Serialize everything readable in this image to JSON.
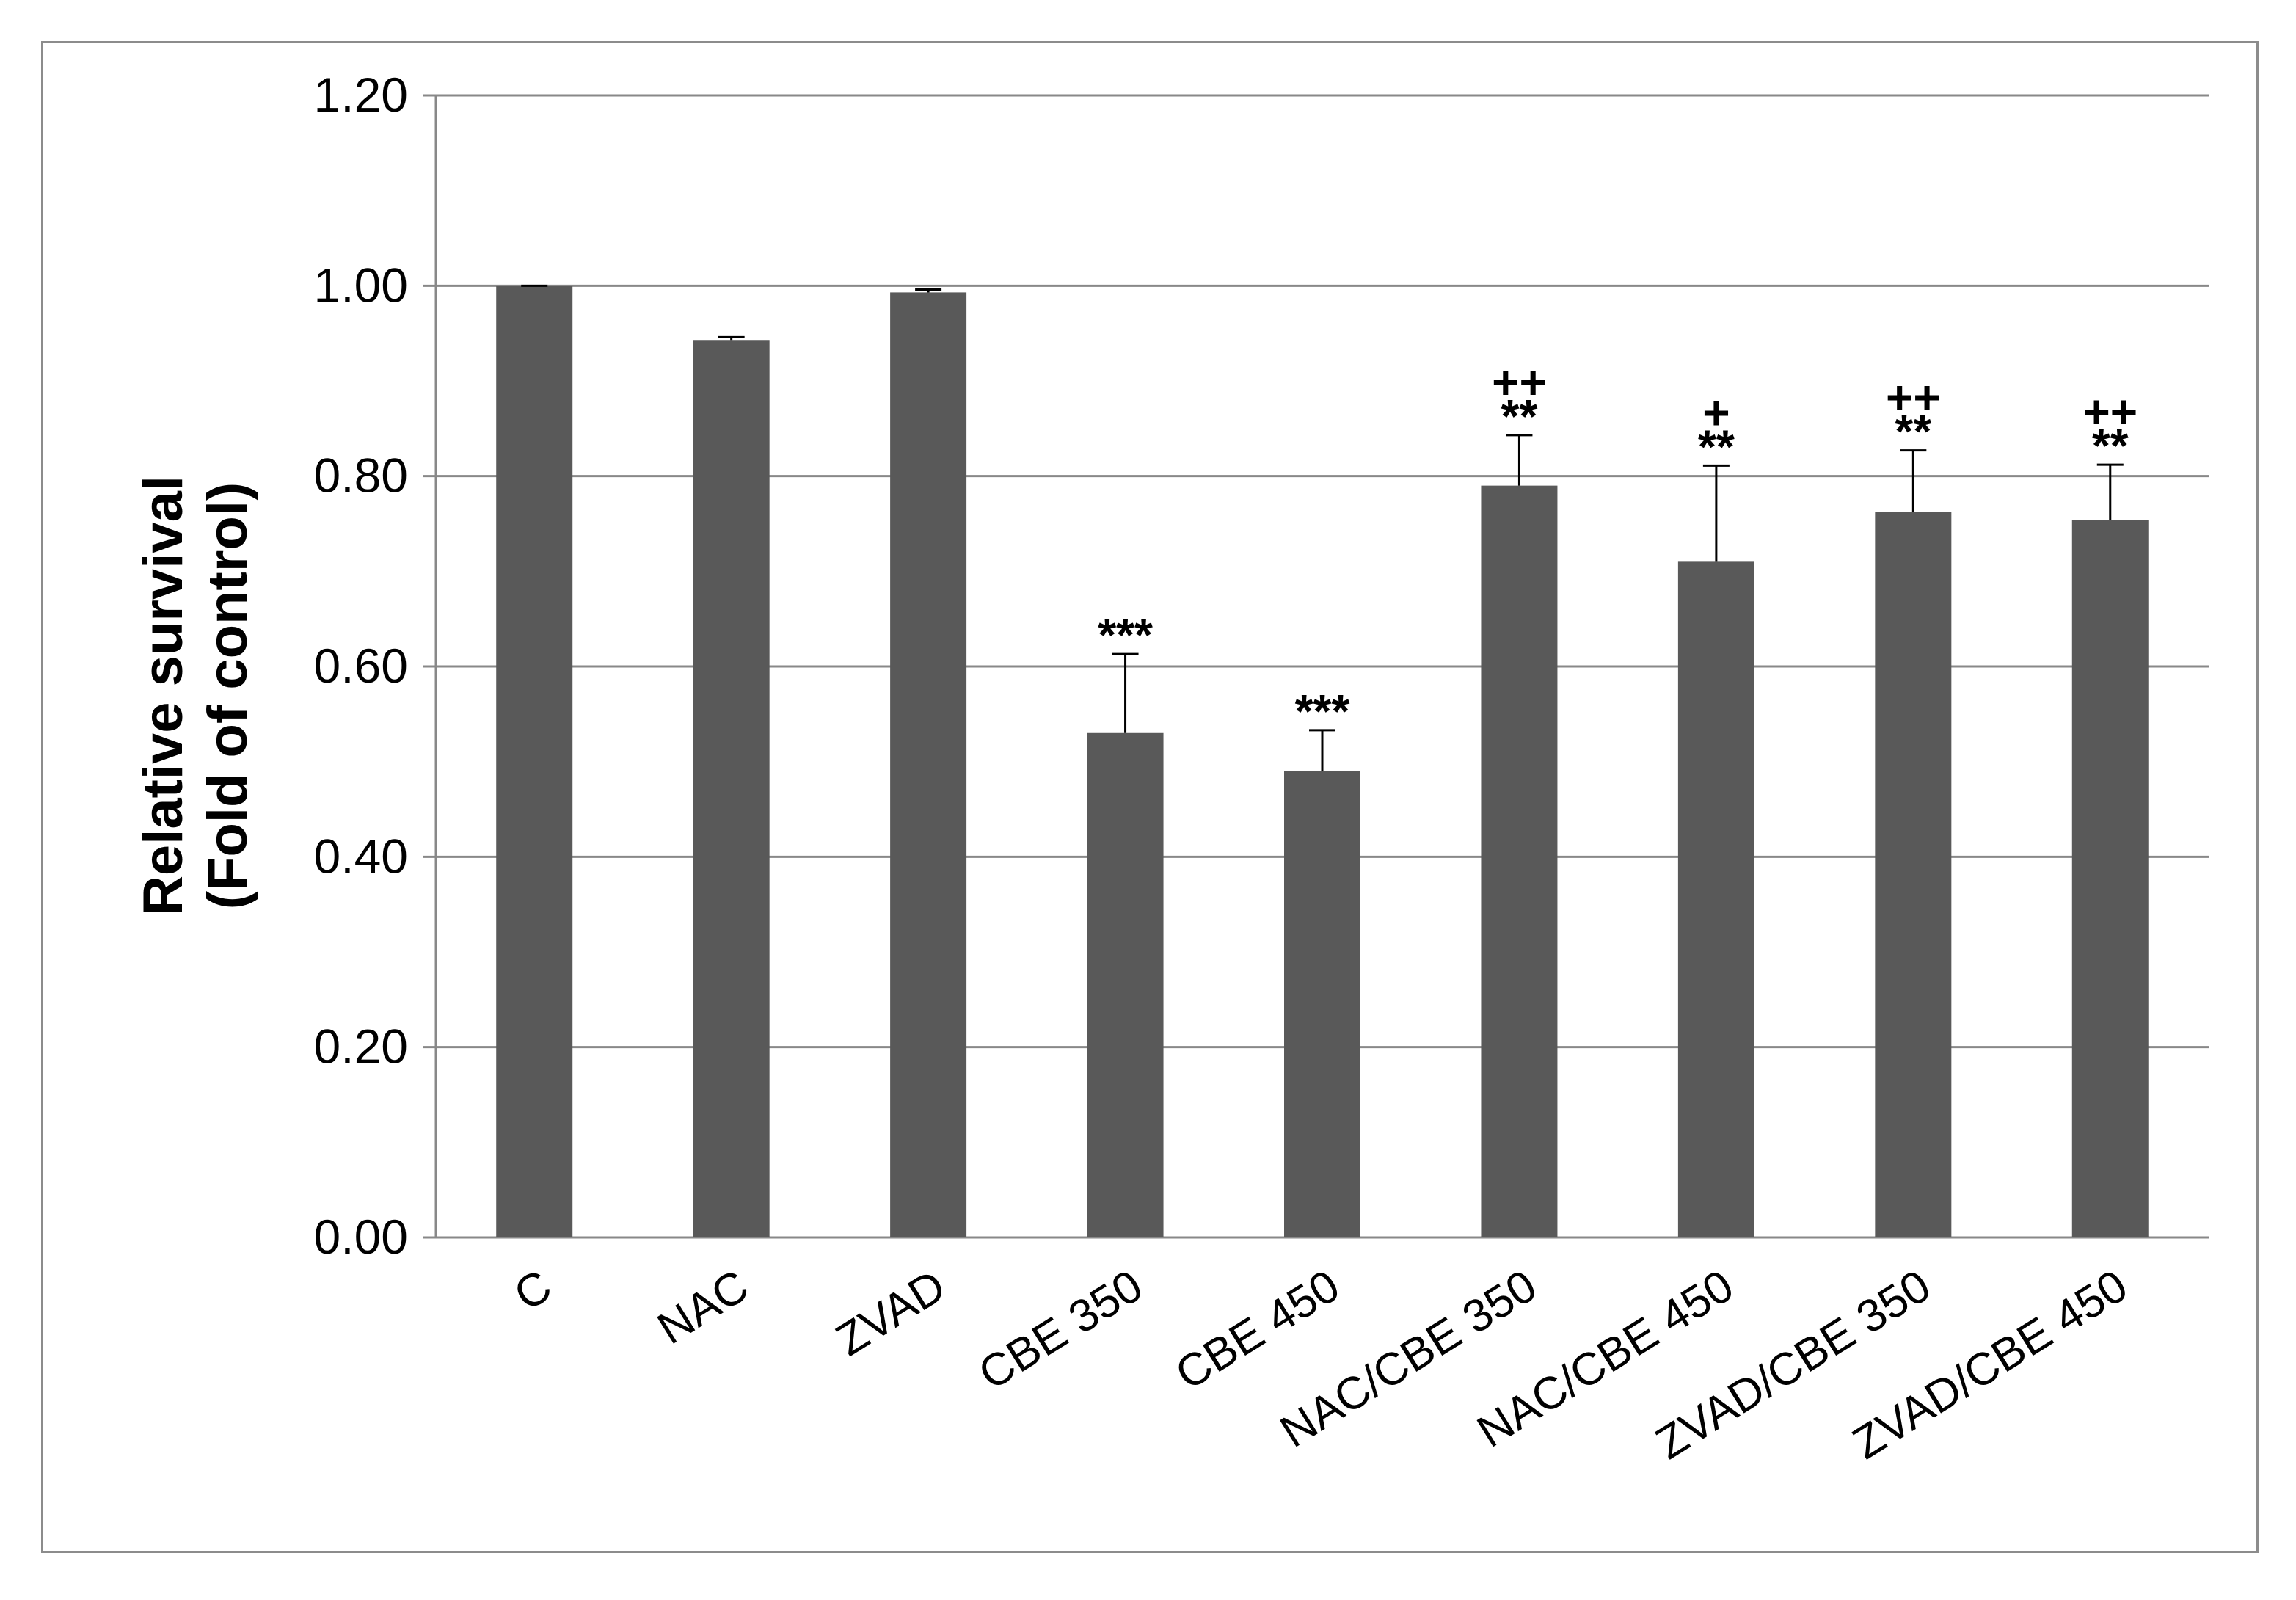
{
  "chart_data": {
    "type": "bar",
    "title": "",
    "ylabel_lines": [
      "Relative survival",
      "(Fold of control)"
    ],
    "xlabel": "",
    "ylim": [
      0,
      1.2
    ],
    "yticks": [
      "0.00",
      "0.20",
      "0.40",
      "0.60",
      "0.80",
      "1.00",
      "1.20"
    ],
    "ytick_values": [
      0,
      0.2,
      0.4,
      0.6,
      0.8,
      1.0,
      1.2
    ],
    "grid": true,
    "bar_color": "#595959",
    "categories": [
      "C",
      "NAC",
      "ZVAD",
      "CBE 350",
      "CBE 450",
      "NAC/CBE 350",
      "NAC/CBE 450",
      "ZVAD/CBE 350",
      "ZVAD/CBE 450"
    ],
    "values": [
      1.0,
      0.943,
      0.993,
      0.53,
      0.49,
      0.79,
      0.71,
      0.762,
      0.754
    ],
    "error_upper": [
      0.0,
      0.003,
      0.003,
      0.083,
      0.043,
      0.053,
      0.101,
      0.065,
      0.058
    ],
    "significance": [
      {
        "stars": "",
        "plus": ""
      },
      {
        "stars": "",
        "plus": ""
      },
      {
        "stars": "",
        "plus": ""
      },
      {
        "stars": "***",
        "plus": ""
      },
      {
        "stars": "***",
        "plus": ""
      },
      {
        "stars": "**",
        "plus": "++"
      },
      {
        "stars": "**",
        "plus": "+"
      },
      {
        "stars": "**",
        "plus": "++"
      },
      {
        "stars": "**",
        "plus": "++"
      }
    ]
  }
}
